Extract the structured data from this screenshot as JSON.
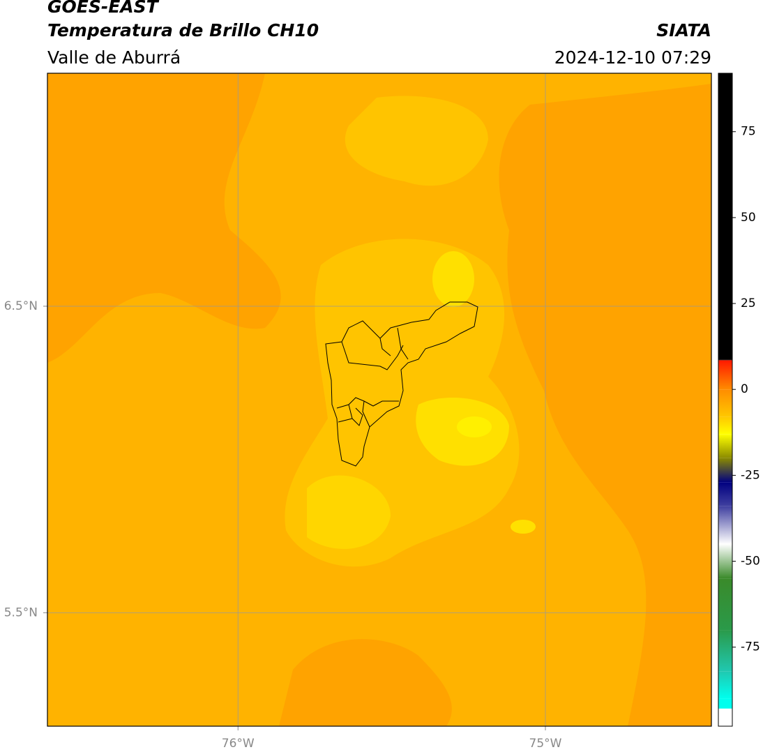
{
  "map": {
    "title": "GOES-EAST",
    "subtitle": "Temperatura de Brillo CH10",
    "region": "Valle de Aburrá",
    "source": "SIATA",
    "datetime": "2024-12-10 07:29",
    "xlim": [
      -76.62,
      -74.46
    ],
    "ylim": [
      5.13,
      7.26
    ],
    "xticks": [
      {
        "value": -76,
        "label": "76°W"
      },
      {
        "value": -75,
        "label": "75°W"
      }
    ],
    "yticks": [
      {
        "value": 6.5,
        "label": "6.5°N"
      },
      {
        "value": 5.5,
        "label": "5.5°N"
      }
    ],
    "grid": true,
    "colorbar": {
      "lim": [
        -98,
        92
      ],
      "ticks": [
        75,
        50,
        25,
        0,
        -25,
        -50,
        -75
      ],
      "stops": [
        {
          "value": 92,
          "color": "#000000"
        },
        {
          "value": 8.6,
          "color": "#000000"
        },
        {
          "value": 8.4,
          "color": "#ff1a00"
        },
        {
          "value": 0,
          "color": "#ff8c00"
        },
        {
          "value": -8,
          "color": "#ffc800"
        },
        {
          "value": -13,
          "color": "#ffff00"
        },
        {
          "value": -20,
          "color": "#8a8a00"
        },
        {
          "value": -27,
          "color": "#000080"
        },
        {
          "value": -34,
          "color": "#4040a0"
        },
        {
          "value": -45,
          "color": "#ffffff"
        },
        {
          "value": -55,
          "color": "#3a8a2a"
        },
        {
          "value": -70,
          "color": "#2a9a4a"
        },
        {
          "value": -82,
          "color": "#20c8b0"
        },
        {
          "value": -90,
          "color": "#00ffee"
        },
        {
          "value": -92.8,
          "color": "#00ffee"
        },
        {
          "value": -93,
          "color": "#ffffff"
        },
        {
          "value": -98,
          "color": "#ffffff"
        }
      ]
    }
  }
}
